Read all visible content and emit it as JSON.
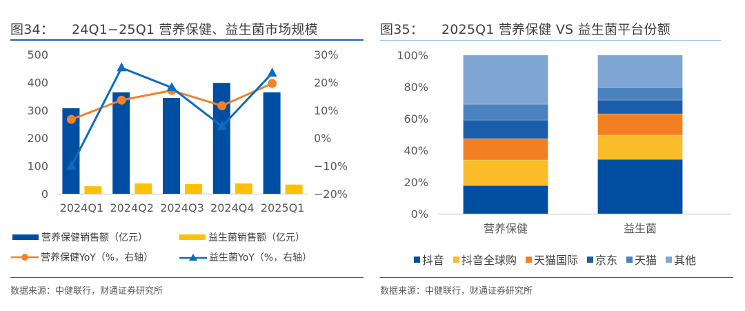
{
  "left": {
    "title_prefix": "图34：",
    "title": "24Q1−25Q1 营养保健、益生菌市场规模",
    "source": "数据来源：中健联行，财通证券研究所",
    "legend": [
      {
        "label": "营养保健销售额（亿元）",
        "color": "#004ea2",
        "kind": "bar"
      },
      {
        "label": "益生菌销售额（亿元）",
        "color": "#ffc000",
        "kind": "bar"
      },
      {
        "label": "营养保健YoY（%，右轴）",
        "color": "#f28128",
        "kind": "line-circle"
      },
      {
        "label": "益生菌YoY（%，右轴）",
        "color": "#0a6cc2",
        "kind": "line-triangle"
      }
    ]
  },
  "right": {
    "title_prefix": "图35：",
    "title": "2025Q1 营养保健 VS 益生菌平台份额",
    "source": "数据来源：中健联行，财通证券研究所"
  },
  "chart_data": [
    {
      "type": "bar",
      "title": "24Q1−25Q1 营养保健、益生菌市场规模",
      "categories": [
        "2024Q1",
        "2024Q2",
        "2024Q3",
        "2024Q4",
        "2025Q1"
      ],
      "ylim": [
        0,
        500
      ],
      "yticks": [
        0,
        100,
        200,
        300,
        400,
        500
      ],
      "ytick_labels": [
        "0",
        "100",
        "200",
        "300",
        "400",
        "500"
      ],
      "y2lim": [
        -20,
        30
      ],
      "y2ticks": [
        -20,
        -10,
        0,
        10,
        20,
        30
      ],
      "y2tick_labels": [
        "−20%",
        "−10%",
        "0%",
        "10%",
        "20%",
        "30%"
      ],
      "grid": false,
      "legend_position": "bottom",
      "series": [
        {
          "name": "营养保健销售额（亿元）",
          "type": "bar",
          "axis": "left",
          "color": "#004ea2",
          "values": [
            307,
            364,
            344,
            398,
            364
          ]
        },
        {
          "name": "益生菌销售额（亿元）",
          "type": "bar",
          "axis": "left",
          "color": "#ffc000",
          "values": [
            27,
            37,
            35,
            37,
            33
          ]
        },
        {
          "name": "营养保健YoY（%，右轴）",
          "type": "line",
          "marker": "circle",
          "axis": "right",
          "color": "#f28128",
          "values": [
            6.7,
            13.6,
            17.1,
            11.6,
            19.6
          ]
        },
        {
          "name": "益生菌YoY（%，右轴）",
          "type": "line",
          "marker": "triangle",
          "axis": "right",
          "color": "#0a6cc2",
          "values": [
            -10.1,
            25.2,
            18.1,
            4.2,
            23.3
          ]
        }
      ]
    },
    {
      "type": "bar",
      "stacked": true,
      "title": "2025Q1 营养保健 VS 益生菌平台份额",
      "categories": [
        "营养保健",
        "益生菌"
      ],
      "ylim": [
        0,
        100
      ],
      "yticks": [
        0,
        20,
        40,
        60,
        80,
        100
      ],
      "ytick_labels": [
        "0%",
        "20%",
        "40%",
        "60%",
        "80%",
        "100%"
      ],
      "grid": false,
      "legend_position": "bottom",
      "series": [
        {
          "name": "抖音",
          "color": "#004ea2",
          "values": [
            17.8,
            34.3
          ]
        },
        {
          "name": "抖音全球购",
          "color": "#fbbc2a",
          "values": [
            16.1,
            15.3
          ]
        },
        {
          "name": "天猫国际",
          "color": "#f28023",
          "values": [
            13.5,
            13.4
          ]
        },
        {
          "name": "京东",
          "color": "#1a5eab",
          "values": [
            11.7,
            8.7
          ]
        },
        {
          "name": "天猫",
          "color": "#4a82c0",
          "values": [
            10.0,
            7.9
          ]
        },
        {
          "name": "其他",
          "color": "#7fa6d3",
          "values": [
            30.9,
            20.4
          ]
        }
      ]
    }
  ]
}
